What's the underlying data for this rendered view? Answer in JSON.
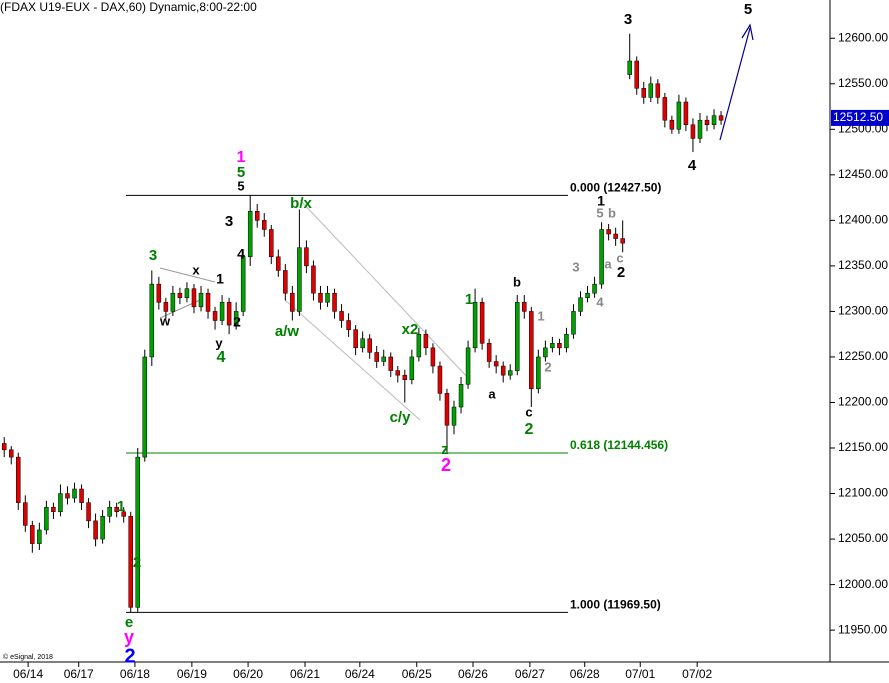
{
  "chart_data": {
    "type": "candlestick",
    "title": "(FDAX U19-EUX - DAX,60) Dynamic,8:00-22:00",
    "footer": "© eSignal, 2018",
    "up_color": "#00a000",
    "down_color": "#e00000",
    "xlim": [
      -0.6,
      117.5
    ],
    "xticks": [
      {
        "value": 3.4,
        "label": "06/14"
      },
      {
        "value": 10.6,
        "label": "06/17"
      },
      {
        "value": 18.6,
        "label": "06/18"
      },
      {
        "value": 26.7,
        "label": "06/19"
      },
      {
        "value": 34.7,
        "label": "06/20"
      },
      {
        "value": 42.8,
        "label": "06/21"
      },
      {
        "value": 50.6,
        "label": "06/24"
      },
      {
        "value": 58.7,
        "label": "06/25"
      },
      {
        "value": 66.7,
        "label": "06/26"
      },
      {
        "value": 74.8,
        "label": "06/27"
      },
      {
        "value": 82.6,
        "label": "06/28"
      },
      {
        "value": 90.5,
        "label": "07/01"
      },
      {
        "value": 98.6,
        "label": "07/02"
      }
    ],
    "ylim": [
      11915,
      12642
    ],
    "yticks": [
      {
        "value": 11950,
        "label": "11950.00"
      },
      {
        "value": 12000,
        "label": "12000.00"
      },
      {
        "value": 12050,
        "label": "12050.00"
      },
      {
        "value": 12100,
        "label": "12100.00"
      },
      {
        "value": 12150,
        "label": "12150.00"
      },
      {
        "value": 12200,
        "label": "12200.00"
      },
      {
        "value": 12250,
        "label": "12250.00"
      },
      {
        "value": 12300,
        "label": "12300.00"
      },
      {
        "value": 12350,
        "label": "12350.00"
      },
      {
        "value": 12400,
        "label": "12400.00"
      },
      {
        "value": 12450,
        "label": "12450.00"
      },
      {
        "value": 12500,
        "label": "12500.00"
      },
      {
        "value": 12550,
        "label": "12550.00"
      },
      {
        "value": 12600,
        "label": "12600.00"
      }
    ],
    "last_price": {
      "value": 12512.5,
      "label": "12512.50",
      "color": "#0000cc"
    },
    "levels": [
      {
        "value": 12427.5,
        "label": "0.000 (12427.50)",
        "color": "#000000"
      },
      {
        "value": 12144.456,
        "label": "0.618 (12144.456)",
        "color": "#008000"
      },
      {
        "value": 11969.5,
        "label": "1.000 (11969.50)",
        "color": "#000000"
      }
    ],
    "x": [
      0,
      1,
      2,
      3,
      4,
      5,
      6,
      7,
      8,
      9,
      10,
      11,
      12,
      13,
      14,
      15,
      16,
      17,
      18,
      19,
      20,
      21,
      22,
      23,
      24,
      25,
      26,
      27,
      28,
      29,
      30,
      31,
      32,
      33,
      34,
      35,
      36,
      37,
      38,
      39,
      40,
      41,
      42,
      43,
      44,
      45,
      46,
      47,
      48,
      49,
      50,
      51,
      52,
      53,
      54,
      55,
      56,
      57,
      58,
      59,
      60,
      61,
      62,
      63,
      64,
      65,
      66,
      67,
      68,
      69,
      70,
      71,
      72,
      73,
      74,
      75,
      76,
      77,
      78,
      79,
      80,
      81,
      82,
      83,
      84,
      85,
      86,
      87,
      88,
      89,
      90,
      91,
      92,
      93,
      94,
      95,
      96,
      97,
      98,
      99,
      100,
      101,
      102
    ],
    "ohlc": [
      [
        12155,
        12162,
        12140,
        12148
      ],
      [
        12148,
        12152,
        12132,
        12140
      ],
      [
        12140,
        12145,
        12082,
        12090
      ],
      [
        12090,
        12098,
        12058,
        12065
      ],
      [
        12065,
        12070,
        12035,
        12045
      ],
      [
        12045,
        12068,
        12038,
        12060
      ],
      [
        12060,
        12092,
        12055,
        12085
      ],
      [
        12085,
        12090,
        12072,
        12080
      ],
      [
        12080,
        12110,
        12075,
        12100
      ],
      [
        12100,
        12108,
        12088,
        12095
      ],
      [
        12095,
        12112,
        12090,
        12105
      ],
      [
        12105,
        12110,
        12082,
        12090
      ],
      [
        12090,
        12095,
        12062,
        12070
      ],
      [
        12070,
        12078,
        12042,
        12050
      ],
      [
        12050,
        12082,
        12045,
        12075
      ],
      [
        12075,
        12092,
        12068,
        12085
      ],
      [
        12085,
        12090,
        12074,
        12080
      ],
      [
        12080,
        12085,
        12068,
        12075
      ],
      [
        12075,
        12080,
        11969.5,
        11975
      ],
      [
        11975,
        12150,
        11970,
        12140
      ],
      [
        12140,
        12258,
        12135,
        12250
      ],
      [
        12250,
        12345,
        12240,
        12330
      ],
      [
        12330,
        12338,
        12302,
        12310
      ],
      [
        12310,
        12315,
        12292,
        12300
      ],
      [
        12300,
        12328,
        12295,
        12320
      ],
      [
        12320,
        12326,
        12308,
        12315
      ],
      [
        12315,
        12332,
        12310,
        12325
      ],
      [
        12325,
        12330,
        12298,
        12305
      ],
      [
        12305,
        12328,
        12300,
        12320
      ],
      [
        12320,
        12325,
        12292,
        12300
      ],
      [
        12300,
        12305,
        12280,
        12290
      ],
      [
        12290,
        12318,
        12285,
        12310
      ],
      [
        12310,
        12315,
        12275,
        12285
      ],
      [
        12285,
        12310,
        12280,
        12300
      ],
      [
        12300,
        12368,
        12295,
        12360
      ],
      [
        12360,
        12427.5,
        12350,
        12410
      ],
      [
        12410,
        12418,
        12392,
        12400
      ],
      [
        12400,
        12408,
        12382,
        12390
      ],
      [
        12390,
        12395,
        12352,
        12360
      ],
      [
        12360,
        12368,
        12338,
        12345
      ],
      [
        12345,
        12352,
        12312,
        12320
      ],
      [
        12320,
        12328,
        12290,
        12300
      ],
      [
        12300,
        12412,
        12295,
        12370
      ],
      [
        12370,
        12378,
        12342,
        12350
      ],
      [
        12350,
        12356,
        12312,
        12320
      ],
      [
        12320,
        12328,
        12302,
        12310
      ],
      [
        12310,
        12328,
        12305,
        12320
      ],
      [
        12320,
        12325,
        12292,
        12300
      ],
      [
        12300,
        12308,
        12282,
        12290
      ],
      [
        12290,
        12298,
        12272,
        12280
      ],
      [
        12280,
        12285,
        12252,
        12260
      ],
      [
        12260,
        12278,
        12255,
        12270
      ],
      [
        12270,
        12275,
        12248,
        12255
      ],
      [
        12255,
        12262,
        12238,
        12245
      ],
      [
        12245,
        12258,
        12240,
        12250
      ],
      [
        12250,
        12255,
        12228,
        12235
      ],
      [
        12235,
        12240,
        12222,
        12230
      ],
      [
        12230,
        12236,
        12200,
        12225
      ],
      [
        12225,
        12258,
        12220,
        12250
      ],
      [
        12250,
        12282,
        12245,
        12275
      ],
      [
        12275,
        12280,
        12252,
        12260
      ],
      [
        12260,
        12265,
        12232,
        12240
      ],
      [
        12240,
        12245,
        12202,
        12210
      ],
      [
        12210,
        12215,
        12145,
        12175
      ],
      [
        12175,
        12202,
        12165,
        12195
      ],
      [
        12195,
        12228,
        12188,
        12220
      ],
      [
        12220,
        12268,
        12215,
        12260
      ],
      [
        12260,
        12325,
        12255,
        12310
      ],
      [
        12310,
        12315,
        12258,
        12265
      ],
      [
        12265,
        12270,
        12238,
        12245
      ],
      [
        12245,
        12252,
        12232,
        12240
      ],
      [
        12240,
        12245,
        12222,
        12230
      ],
      [
        12230,
        12242,
        12225,
        12235
      ],
      [
        12235,
        12318,
        12230,
        12310
      ],
      [
        12310,
        12318,
        12292,
        12300
      ],
      [
        12300,
        12305,
        12195,
        12215
      ],
      [
        12215,
        12258,
        12210,
        12250
      ],
      [
        12250,
        12268,
        12245,
        12260
      ],
      [
        12260,
        12272,
        12255,
        12265
      ],
      [
        12265,
        12270,
        12252,
        12260
      ],
      [
        12260,
        12282,
        12255,
        12275
      ],
      [
        12275,
        12308,
        12270,
        12300
      ],
      [
        12300,
        12322,
        12295,
        12315
      ],
      [
        12315,
        12328,
        12310,
        12320
      ],
      [
        12320,
        12338,
        12315,
        12330
      ],
      [
        12330,
        12398,
        12325,
        12390
      ],
      [
        12390,
        12396,
        12378,
        12385
      ],
      [
        12385,
        12392,
        12372,
        12380
      ],
      [
        12380,
        12400,
        12365,
        12375
      ],
      [
        12560,
        12605,
        12555,
        12575
      ],
      [
        12575,
        12580,
        12538,
        12545
      ],
      [
        12545,
        12552,
        12528,
        12535
      ],
      [
        12535,
        12558,
        12530,
        12550
      ],
      [
        12550,
        12555,
        12528,
        12535
      ],
      [
        12535,
        12540,
        12502,
        12510
      ],
      [
        12510,
        12515,
        12495,
        12500
      ],
      [
        12500,
        12538,
        12495,
        12530
      ],
      [
        12530,
        12535,
        12498,
        12505
      ],
      [
        12505,
        12512,
        12475,
        12490
      ],
      [
        12490,
        12518,
        12485,
        12510
      ],
      [
        12510,
        12515,
        12498,
        12505
      ],
      [
        12505,
        12522,
        12500,
        12515
      ],
      [
        12515,
        12520,
        12505,
        12510
      ]
    ],
    "annotations": [
      {
        "text": "3",
        "color": "#000000"
      },
      {
        "text": "5",
        "color": "#000000"
      },
      {
        "text": "4",
        "color": "#000000"
      },
      {
        "text": "1",
        "color": "#ff00ff"
      },
      {
        "text": "5",
        "color": "#008000"
      },
      {
        "text": "5",
        "color": "#000000"
      },
      {
        "text": "3",
        "color": "#000000"
      },
      {
        "text": "4",
        "color": "#000000"
      },
      {
        "text": "3",
        "color": "#008000"
      },
      {
        "text": "x",
        "color": "#000000"
      },
      {
        "text": "1",
        "color": "#000000"
      },
      {
        "text": "w",
        "color": "#000000"
      },
      {
        "text": "2",
        "color": "#000000"
      },
      {
        "text": "y",
        "color": "#000000"
      },
      {
        "text": "4",
        "color": "#008000"
      },
      {
        "text": "b/x",
        "color": "#008000"
      },
      {
        "text": "a/w",
        "color": "#008000"
      },
      {
        "text": "x2",
        "color": "#008000"
      },
      {
        "text": "c/y",
        "color": "#008000"
      },
      {
        "text": "z",
        "color": "#008000"
      },
      {
        "text": "2",
        "color": "#ff00ff"
      },
      {
        "text": "1",
        "color": "#008000"
      },
      {
        "text": "b",
        "color": "#000000"
      },
      {
        "text": "a",
        "color": "#000000"
      },
      {
        "text": "c",
        "color": "#000000"
      },
      {
        "text": "2",
        "color": "#008000"
      },
      {
        "text": "1",
        "color": "#888888"
      },
      {
        "text": "2",
        "color": "#888888"
      },
      {
        "text": "3",
        "color": "#888888"
      },
      {
        "text": "4",
        "color": "#888888"
      },
      {
        "text": "1",
        "color": "#000000"
      },
      {
        "text": "5",
        "color": "#888888"
      },
      {
        "text": "b",
        "color": "#888888"
      },
      {
        "text": "a",
        "color": "#888888"
      },
      {
        "text": "c",
        "color": "#888888"
      },
      {
        "text": "2",
        "color": "#000000"
      },
      {
        "text": "1",
        "color": "#008000"
      },
      {
        "text": "2",
        "color": "#008000"
      },
      {
        "text": "e",
        "color": "#008000"
      },
      {
        "text": "y",
        "color": "#ff00ff"
      },
      {
        "text": "2",
        "color": "#0000ff"
      }
    ]
  }
}
